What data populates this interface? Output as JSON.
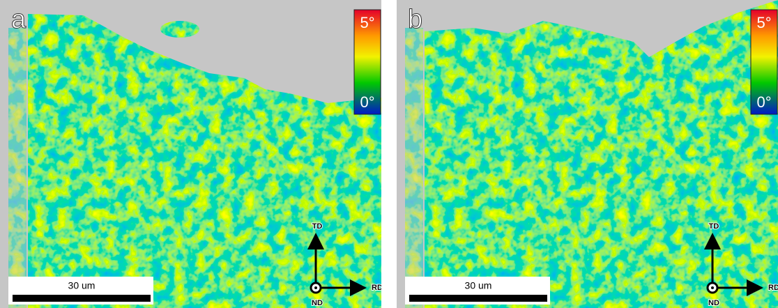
{
  "panels": [
    {
      "label": "a",
      "colorbar": {
        "max": "5°",
        "min": "0°"
      },
      "scale_bar": "30 um",
      "axes": {
        "up": "TD",
        "right": "RD",
        "out": "ND"
      }
    },
    {
      "label": "b",
      "colorbar": {
        "max": "5°",
        "min": "0°"
      },
      "scale_bar": "30 um",
      "axes": {
        "up": "TD",
        "right": "RD",
        "out": "ND"
      }
    }
  ]
}
